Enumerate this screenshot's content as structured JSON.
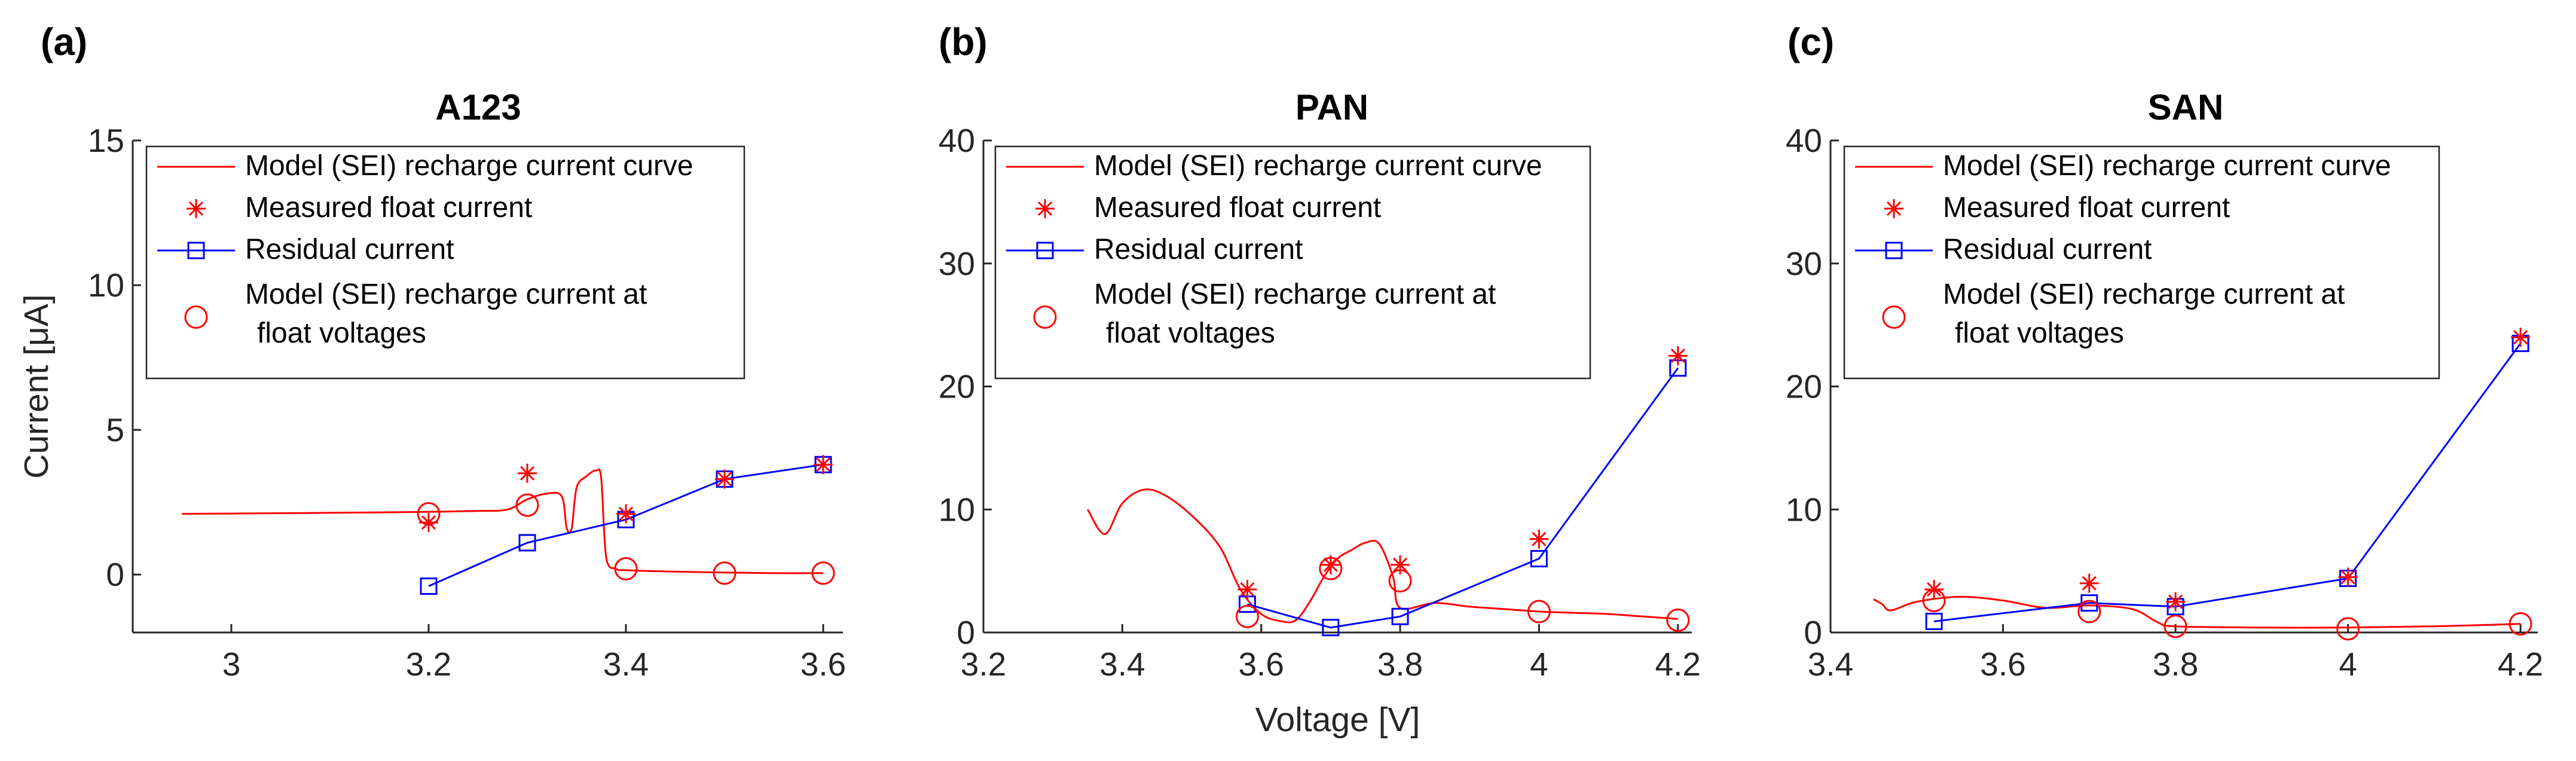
{
  "colors": {
    "model": "#ff0000",
    "measured": "#ff0000",
    "residual": "#0000ff",
    "model_points": "#ff0000",
    "axis": "#262626"
  },
  "legend_labels": [
    "Model (SEI) recharge current curve",
    "Measured float current",
    "Residual current",
    "Model (SEI) recharge current at",
    "float voltages"
  ],
  "chart_data": [
    {
      "panel": "(a)",
      "type": "line",
      "title": "A123",
      "xlabel": "",
      "ylabel": "Current [μA]",
      "xlim": [
        2.9,
        3.62
      ],
      "ylim": [
        -2,
        15
      ],
      "xticks": [
        3,
        3.2,
        3.4,
        3.6
      ],
      "xtick_labels": [
        "3",
        "3.2",
        "3.4",
        "3.6"
      ],
      "yticks": [
        0,
        5,
        10,
        15
      ],
      "ytick_labels": [
        "0",
        "5",
        "10",
        "15"
      ],
      "legend_position": "top",
      "model_curve": {
        "name": "Model (SEI) recharge current curve",
        "x": [
          2.95,
          3.05,
          3.15,
          3.2,
          3.25,
          3.28,
          3.3,
          3.32,
          3.335,
          3.34,
          3.345,
          3.35,
          3.36,
          3.37,
          3.375,
          3.38,
          3.39,
          3.4,
          3.45,
          3.5,
          3.55,
          3.6
        ],
        "y": [
          2.1,
          2.12,
          2.15,
          2.17,
          2.2,
          2.25,
          2.6,
          2.8,
          2.7,
          1.6,
          1.6,
          3.0,
          3.4,
          3.6,
          3.3,
          0.6,
          0.2,
          0.15,
          0.1,
          0.07,
          0.05,
          0.05
        ]
      },
      "measured": {
        "name": "Measured float current",
        "x": [
          3.2,
          3.3,
          3.4,
          3.5,
          3.6
        ],
        "y": [
          1.8,
          3.5,
          2.1,
          3.3,
          3.8
        ]
      },
      "residual": {
        "name": "Residual current",
        "x": [
          3.2,
          3.3,
          3.4,
          3.5,
          3.6
        ],
        "y": [
          -0.4,
          1.1,
          1.9,
          3.3,
          3.8
        ]
      },
      "model_points": {
        "name": "Model (SEI) recharge current at float voltages",
        "x": [
          3.2,
          3.3,
          3.4,
          3.5,
          3.6
        ],
        "y": [
          2.1,
          2.4,
          0.2,
          0.05,
          0.05
        ]
      }
    },
    {
      "panel": "(b)",
      "type": "line",
      "title": "PAN",
      "xlabel": "Voltage [V]",
      "ylabel": "",
      "xlim": [
        3.2,
        4.22
      ],
      "ylim": [
        0,
        40
      ],
      "xticks": [
        3.2,
        3.4,
        3.6,
        3.8,
        4,
        4.2
      ],
      "xtick_labels": [
        "3.2",
        "3.4",
        "3.6",
        "3.8",
        "4",
        "4.2"
      ],
      "yticks": [
        0,
        10,
        20,
        30,
        40
      ],
      "ytick_labels": [
        "0",
        "10",
        "20",
        "30",
        "40"
      ],
      "legend_position": "top",
      "model_curve": {
        "name": "Model (SEI) recharge current curve",
        "x": [
          3.35,
          3.375,
          3.4,
          3.43,
          3.46,
          3.5,
          3.54,
          3.57,
          3.6,
          3.63,
          3.65,
          3.67,
          3.69,
          3.71,
          3.73,
          3.75,
          3.77,
          3.79,
          3.8,
          3.85,
          3.9,
          3.95,
          4.0,
          4.05,
          4.1,
          4.15,
          4.2
        ],
        "y": [
          10,
          8,
          10.5,
          11.6,
          11.2,
          9.5,
          7,
          3.5,
          1.5,
          0.9,
          1.0,
          2.5,
          4.5,
          6,
          6.7,
          7.3,
          7.2,
          4.5,
          2.0,
          2.4,
          2.1,
          1.9,
          1.7,
          1.6,
          1.5,
          1.3,
          1.1
        ]
      },
      "measured": {
        "name": "Measured float current",
        "x": [
          3.58,
          3.7,
          3.8,
          4.0,
          4.2
        ],
        "y": [
          3.5,
          5.5,
          5.5,
          7.6,
          22.5
        ]
      },
      "residual": {
        "name": "Residual current",
        "x": [
          3.58,
          3.7,
          3.8,
          4.0,
          4.2
        ],
        "y": [
          2.3,
          0.4,
          1.3,
          6.0,
          21.5
        ]
      },
      "model_points": {
        "name": "Model (SEI) recharge current at float voltages",
        "x": [
          3.58,
          3.7,
          3.8,
          4.0,
          4.2
        ],
        "y": [
          1.3,
          5.2,
          4.2,
          1.7,
          1.0
        ]
      }
    },
    {
      "panel": "(c)",
      "type": "line",
      "title": "SAN",
      "xlabel": "",
      "ylabel": "",
      "xlim": [
        3.4,
        4.22
      ],
      "ylim": [
        0,
        40
      ],
      "xticks": [
        3.4,
        3.6,
        3.8,
        4,
        4.2
      ],
      "xtick_labels": [
        "3.4",
        "3.6",
        "3.8",
        "4",
        "4.2"
      ],
      "yticks": [
        0,
        10,
        20,
        30,
        40
      ],
      "ytick_labels": [
        "0",
        "10",
        "20",
        "30",
        "40"
      ],
      "legend_position": "top",
      "model_curve": {
        "name": "Model (SEI) recharge current curve",
        "x": [
          3.45,
          3.46,
          3.47,
          3.5,
          3.55,
          3.6,
          3.65,
          3.7,
          3.75,
          3.78,
          3.8,
          3.9,
          4.0,
          4.1,
          4.2
        ],
        "y": [
          2.7,
          2.3,
          1.8,
          2.5,
          2.9,
          2.6,
          2.0,
          2.2,
          1.9,
          0.8,
          0.5,
          0.4,
          0.4,
          0.5,
          0.7
        ]
      },
      "measured": {
        "name": "Measured float current",
        "x": [
          3.52,
          3.7,
          3.8,
          4.0,
          4.2
        ],
        "y": [
          3.5,
          4.0,
          2.5,
          4.5,
          24.0
        ]
      },
      "residual": {
        "name": "Residual current",
        "x": [
          3.52,
          3.7,
          3.8,
          4.0,
          4.2
        ],
        "y": [
          0.9,
          2.4,
          2.1,
          4.4,
          23.5
        ]
      },
      "model_points": {
        "name": "Model (SEI) recharge current at float voltages",
        "x": [
          3.52,
          3.7,
          3.8,
          4.0,
          4.2
        ],
        "y": [
          2.6,
          1.7,
          0.5,
          0.3,
          0.7
        ]
      }
    }
  ]
}
